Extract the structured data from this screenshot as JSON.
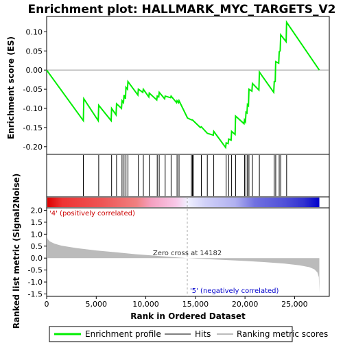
{
  "chart_data": {
    "type": "line",
    "title": "Enrichment plot: HALLMARK_MYC_TARGETS_V2",
    "xlabel": "Rank in Ordered Dataset",
    "ylabel_top": "Enrichment score (ES)",
    "ylabel_bottom": "Ranked list metric (Signal2Noise)",
    "x_range": [
      0,
      28500
    ],
    "x_ticks": [
      0,
      5000,
      10000,
      15000,
      20000,
      25000
    ],
    "x_tick_labels": [
      "0",
      "5,000",
      "10,000",
      "15,000",
      "20,000",
      "25,000"
    ],
    "es_ylim": [
      -0.22,
      0.14
    ],
    "es_ticks": [
      -0.2,
      -0.15,
      -0.1,
      -0.05,
      0.0,
      0.05,
      0.1
    ],
    "es_tick_labels": [
      "-0.20",
      "-0.15",
      "-0.10",
      "-0.05",
      "0.00",
      "0.05",
      "0.10"
    ],
    "metric_ylim": [
      -1.6,
      2.1
    ],
    "metric_ticks": [
      -1.5,
      -1.0,
      -0.5,
      0.0,
      0.5,
      1.0,
      1.5,
      2.0
    ],
    "metric_tick_labels": [
      "-1.5",
      "-1.0",
      "-0.5",
      "0.0",
      "0.5",
      "1.0",
      "1.5",
      "2.0"
    ],
    "series": [
      {
        "name": "Enrichment profile",
        "color": "#00ee00",
        "points": [
          [
            0,
            0.0
          ],
          [
            3700,
            -0.132
          ],
          [
            3750,
            -0.075
          ],
          [
            5200,
            -0.132
          ],
          [
            5250,
            -0.092
          ],
          [
            6500,
            -0.132
          ],
          [
            6550,
            -0.1
          ],
          [
            7000,
            -0.117
          ],
          [
            7050,
            -0.088
          ],
          [
            7550,
            -0.1
          ],
          [
            7600,
            -0.08
          ],
          [
            7750,
            -0.085
          ],
          [
            7800,
            -0.065
          ],
          [
            7950,
            -0.075
          ],
          [
            8000,
            -0.045
          ],
          [
            8150,
            -0.05
          ],
          [
            8200,
            -0.03
          ],
          [
            9200,
            -0.065
          ],
          [
            9250,
            -0.05
          ],
          [
            9700,
            -0.058
          ],
          [
            9750,
            -0.05
          ],
          [
            10300,
            -0.07
          ],
          [
            10350,
            -0.06
          ],
          [
            11100,
            -0.078
          ],
          [
            11150,
            -0.068
          ],
          [
            11300,
            -0.07
          ],
          [
            11350,
            -0.058
          ],
          [
            11900,
            -0.075
          ],
          [
            11950,
            -0.068
          ],
          [
            12500,
            -0.072
          ],
          [
            12550,
            -0.068
          ],
          [
            13100,
            -0.085
          ],
          [
            13150,
            -0.08
          ],
          [
            13300,
            -0.085
          ],
          [
            13350,
            -0.08
          ],
          [
            14200,
            -0.125
          ],
          [
            14600,
            -0.13
          ],
          [
            14700,
            -0.13
          ],
          [
            15500,
            -0.15
          ],
          [
            15600,
            -0.148
          ],
          [
            16200,
            -0.165
          ],
          [
            16800,
            -0.17
          ],
          [
            16850,
            -0.16
          ],
          [
            18050,
            -0.202
          ],
          [
            18100,
            -0.19
          ],
          [
            18300,
            -0.192
          ],
          [
            18350,
            -0.18
          ],
          [
            18600,
            -0.183
          ],
          [
            18650,
            -0.16
          ],
          [
            19000,
            -0.168
          ],
          [
            19050,
            -0.12
          ],
          [
            19900,
            -0.14
          ],
          [
            19950,
            -0.13
          ],
          [
            20050,
            -0.135
          ],
          [
            20100,
            -0.11
          ],
          [
            20200,
            -0.112
          ],
          [
            20250,
            -0.09
          ],
          [
            20350,
            -0.093
          ],
          [
            20400,
            -0.05
          ],
          [
            20700,
            -0.055
          ],
          [
            20750,
            -0.035
          ],
          [
            21400,
            -0.052
          ],
          [
            21450,
            -0.005
          ],
          [
            22900,
            -0.058
          ],
          [
            22950,
            -0.03
          ],
          [
            23050,
            -0.03
          ],
          [
            23100,
            0.022
          ],
          [
            23400,
            0.018
          ],
          [
            23450,
            0.048
          ],
          [
            23550,
            0.05
          ],
          [
            23600,
            0.092
          ],
          [
            24150,
            0.074
          ],
          [
            24200,
            0.125
          ],
          [
            27500,
            0.0
          ]
        ]
      }
    ],
    "hits": [
      3700,
      5250,
      6550,
      7050,
      7600,
      7800,
      8000,
      8200,
      9250,
      9750,
      10350,
      11150,
      11350,
      11950,
      12550,
      13150,
      13350,
      14600,
      14700,
      14800,
      15600,
      16200,
      16850,
      18100,
      18350,
      18650,
      19050,
      19950,
      20100,
      20250,
      20400,
      20750,
      21450,
      22950,
      23100,
      23450,
      23600,
      24200
    ],
    "metric_curve": [
      [
        0,
        1.0
      ],
      [
        100,
        0.8
      ],
      [
        300,
        0.7
      ],
      [
        800,
        0.6
      ],
      [
        1500,
        0.52
      ],
      [
        3000,
        0.42
      ],
      [
        5000,
        0.32
      ],
      [
        7000,
        0.24
      ],
      [
        9000,
        0.16
      ],
      [
        11000,
        0.1
      ],
      [
        12500,
        0.05
      ],
      [
        14182,
        0.0
      ],
      [
        16000,
        -0.04
      ],
      [
        18000,
        -0.08
      ],
      [
        20000,
        -0.12
      ],
      [
        22000,
        -0.17
      ],
      [
        24000,
        -0.23
      ],
      [
        25500,
        -0.3
      ],
      [
        26500,
        -0.38
      ],
      [
        27000,
        -0.47
      ],
      [
        27300,
        -0.6
      ],
      [
        27450,
        -0.8
      ],
      [
        27500,
        -1.45
      ]
    ],
    "zero_cross_label": "Zero cross at 14182",
    "zero_cross": 14182,
    "pos_label": "'4' (positively correlated)",
    "neg_label": "'5' (negatively correlated)",
    "legend": [
      {
        "label": "Enrichment profile",
        "color": "#00ee00"
      },
      {
        "label": "Hits",
        "color": "#000000"
      },
      {
        "label": "Ranking metric scores",
        "color": "#bbbbbb"
      }
    ],
    "colorbar_stops": [
      {
        "x": 0,
        "color": "#dd0000"
      },
      {
        "x": 1500,
        "color": "#ee3333"
      },
      {
        "x": 5500,
        "color": "#ee5555"
      },
      {
        "x": 9000,
        "color": "#f08080"
      },
      {
        "x": 10500,
        "color": "#f4a0c0"
      },
      {
        "x": 13000,
        "color": "#f8c8e8"
      },
      {
        "x": 14182,
        "color": "#f0f0ff"
      },
      {
        "x": 16000,
        "color": "#d0d0f8"
      },
      {
        "x": 19000,
        "color": "#b0b0f0"
      },
      {
        "x": 21000,
        "color": "#7070e0"
      },
      {
        "x": 24000,
        "color": "#5050d8"
      },
      {
        "x": 26000,
        "color": "#3030d0"
      },
      {
        "x": 27500,
        "color": "#0000cc"
      }
    ]
  }
}
